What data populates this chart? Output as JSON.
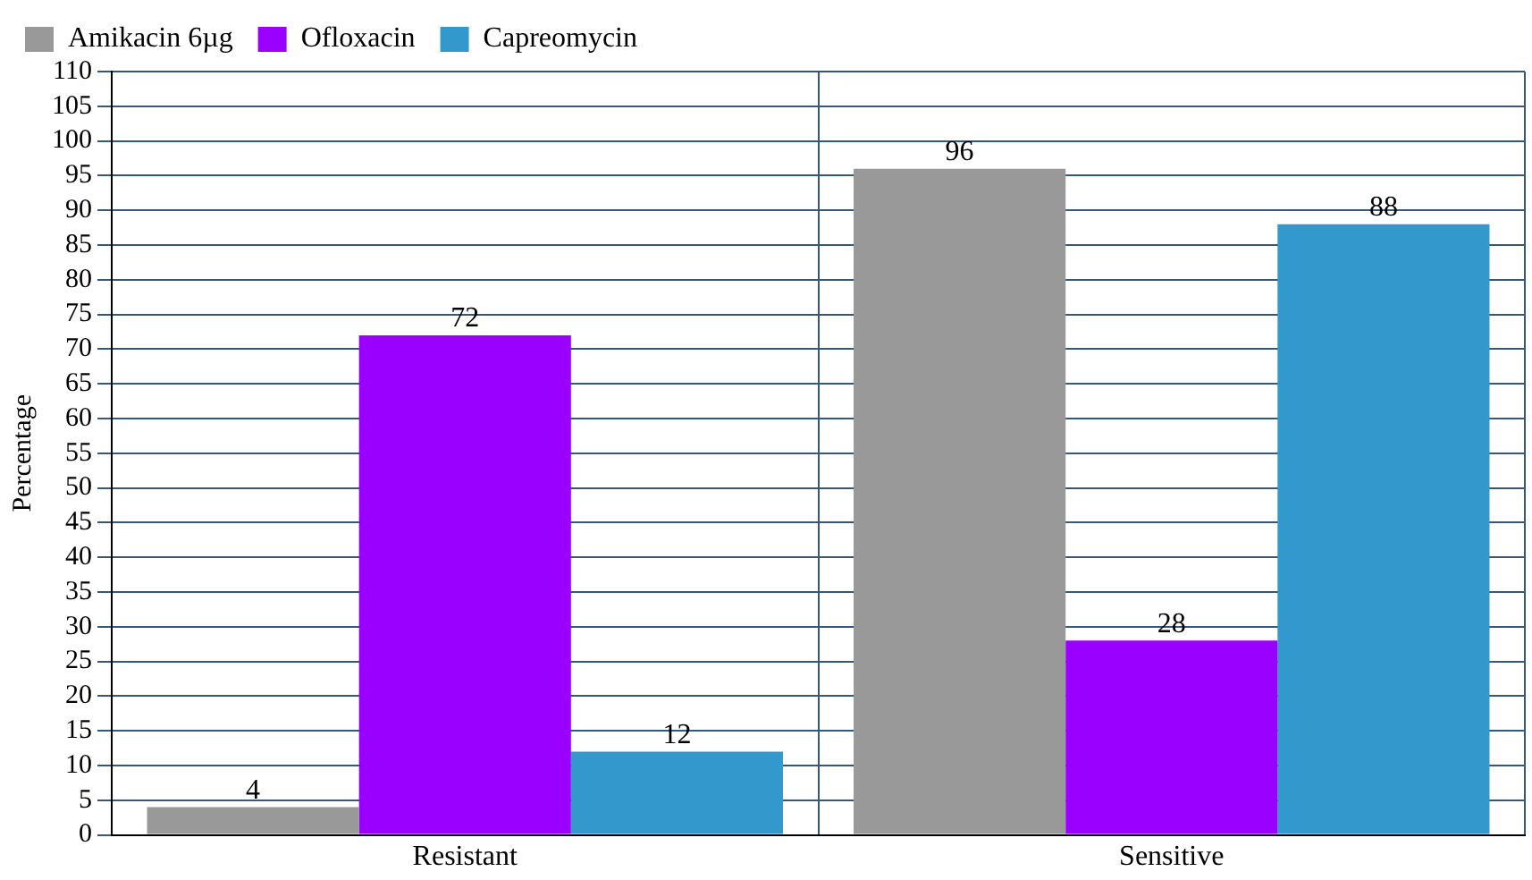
{
  "chart_data": {
    "type": "bar",
    "ylabel": "Percentage",
    "categories": [
      "Resistant",
      "Sensitive"
    ],
    "series": [
      {
        "name": "Amikacin 6µg",
        "color": "#999999",
        "values": [
          4,
          96
        ]
      },
      {
        "name": "Ofloxacin",
        "color": "#9900ff",
        "values": [
          72,
          28
        ]
      },
      {
        "name": "Capreomycin",
        "color": "#3399cc",
        "values": [
          12,
          88
        ]
      }
    ],
    "ylim": [
      0,
      110
    ],
    "yticks": [
      0,
      5,
      10,
      15,
      20,
      25,
      30,
      35,
      40,
      45,
      50,
      55,
      60,
      65,
      70,
      75,
      80,
      85,
      90,
      95,
      100,
      105,
      110
    ],
    "grid": true,
    "legend": "top left",
    "data_labels": true
  }
}
